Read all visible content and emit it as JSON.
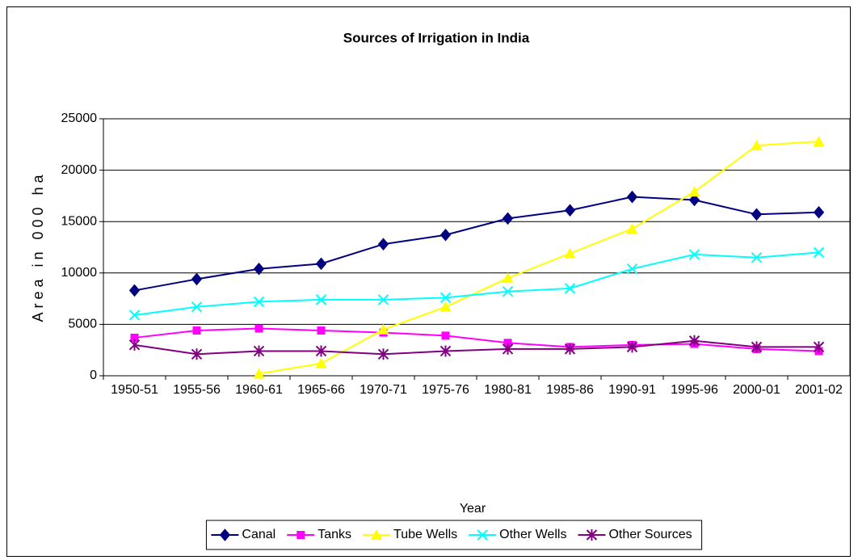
{
  "chart_data": {
    "type": "line",
    "title": "Sources of Irrigation in India",
    "x_label": "Year",
    "y_label": "Area in 000 ha",
    "categories": [
      "1950-51",
      "1955-56",
      "1960-61",
      "1965-66",
      "1970-71",
      "1975-76",
      "1980-81",
      "1985-86",
      "1990-91",
      "1995-96",
      "2000-01",
      "2001-02"
    ],
    "series": [
      {
        "name": "Canal",
        "color": "#000080",
        "marker": "diamond",
        "values": [
          8300,
          9400,
          10400,
          10900,
          12800,
          13700,
          15300,
          16100,
          17400,
          17100,
          15700,
          15900
        ]
      },
      {
        "name": "Tanks",
        "color": "#ff00ff",
        "marker": "square",
        "values": [
          3700,
          4400,
          4600,
          4400,
          4200,
          3900,
          3200,
          2800,
          3000,
          3100,
          2600,
          2400
        ]
      },
      {
        "name": "Tube Wells",
        "color": "#ffff00",
        "marker": "triangle",
        "values": [
          null,
          null,
          200,
          1200,
          4500,
          6700,
          9500,
          11900,
          14300,
          17900,
          22400,
          22800
        ]
      },
      {
        "name": "Other Wells",
        "color": "#00ffff",
        "marker": "x",
        "values": [
          5900,
          6700,
          7200,
          7400,
          7400,
          7600,
          8200,
          8500,
          10400,
          11800,
          11500,
          12000
        ]
      },
      {
        "name": "Other Sources",
        "color": "#800080",
        "marker": "star",
        "values": [
          3000,
          2100,
          2400,
          2400,
          2100,
          2400,
          2600,
          2600,
          2800,
          3400,
          2800,
          2800
        ]
      }
    ],
    "ylim": [
      0,
      25000
    ],
    "yticks": [
      0,
      5000,
      10000,
      15000,
      20000,
      25000
    ],
    "grid": true,
    "legend": "bottom"
  }
}
